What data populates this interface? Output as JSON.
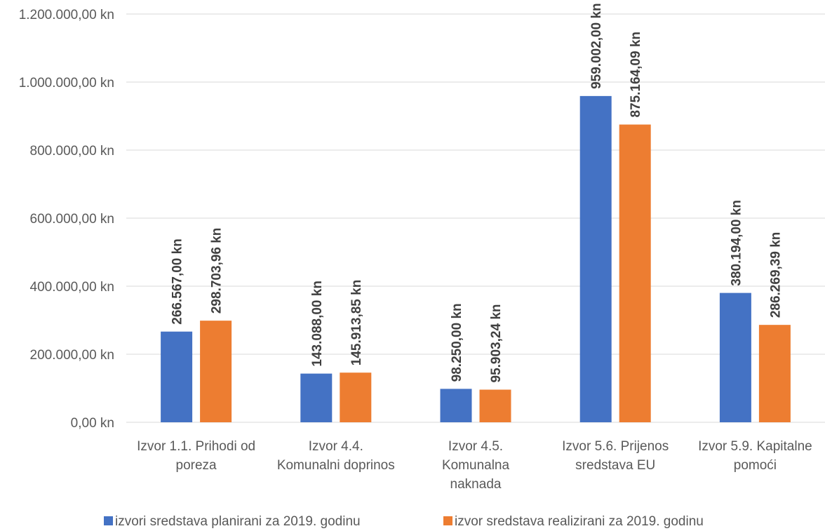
{
  "chart_data": {
    "type": "bar",
    "categories": [
      [
        "Izvor 1.1. Prihodi od",
        "poreza"
      ],
      [
        "Izvor 4.4.",
        "Komunalni doprinos"
      ],
      [
        "Izvor 4.5.",
        "Komunalna",
        "naknada"
      ],
      [
        "Izvor 5.6. Prijenos",
        "sredstava EU"
      ],
      [
        "Izvor 5.9. Kapitalne",
        "pomoći"
      ]
    ],
    "series": [
      {
        "name": "izvori sredstava planirani za 2019. godinu",
        "color": "#4472C4",
        "values": [
          266567.0,
          143088.0,
          98250.0,
          959002.0,
          380194.0
        ],
        "labels": [
          "266.567,00 kn",
          "143.088,00 kn",
          "98.250,00 kn",
          "959.002,00 kn",
          "380.194,00 kn"
        ]
      },
      {
        "name": "izvor sredstava realizirani za 2019. godinu",
        "color": "#ED7D31",
        "values": [
          298703.96,
          145913.85,
          95903.24,
          875164.09,
          286269.39
        ],
        "labels": [
          "298.703,96 kn",
          "145.913,85 kn",
          "95.903,24 kn",
          "875.164,09 kn",
          "286.269,39 kn"
        ]
      }
    ],
    "ylim": [
      0,
      1200000
    ],
    "yticks": [
      {
        "value": 0,
        "label": "0,00 kn"
      },
      {
        "value": 200000,
        "label": "200.000,00 kn"
      },
      {
        "value": 400000,
        "label": "400.000,00 kn"
      },
      {
        "value": 600000,
        "label": "600.000,00 kn"
      },
      {
        "value": 800000,
        "label": "800.000,00 kn"
      },
      {
        "value": 1000000,
        "label": "1.000.000,00 kn"
      },
      {
        "value": 1200000,
        "label": "1.200.000,00 kn"
      }
    ],
    "grid": true,
    "legend_position": "bottom",
    "gridline_color": "#D9D9D9"
  }
}
